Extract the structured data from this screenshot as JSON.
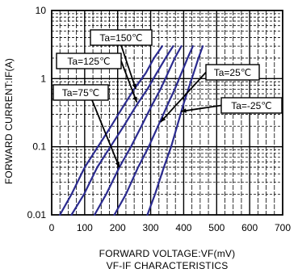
{
  "chart_data": {
    "type": "line",
    "xlabel": "FORWARD VOLTAGE:VF(mV)",
    "subtitle": "VF-IF CHARACTERISTICS",
    "ylabel": "FORWARD CURRENT:IF(A)",
    "x_scale": "linear",
    "y_scale": "log",
    "xlim": [
      0,
      700
    ],
    "ylim": [
      0.01,
      10
    ],
    "x_ticks": [
      "0",
      "100",
      "200",
      "300",
      "400",
      "500",
      "600",
      "700"
    ],
    "y_ticks": [
      "0.01",
      "0.1",
      "1",
      "10"
    ],
    "grid": true,
    "colors": {
      "curve": "#2b2b8f",
      "grid": "#000000"
    },
    "series": [
      {
        "name": "Ta=150℃",
        "x": [
          25,
          60,
          100,
          140,
          180,
          218,
          250,
          285,
          310,
          335
        ],
        "y": [
          0.01,
          0.02,
          0.05,
          0.1,
          0.2,
          0.4,
          0.7,
          1.2,
          2.0,
          3.0
        ]
      },
      {
        "name": "Ta=125℃",
        "x": [
          60,
          98,
          138,
          178,
          218,
          256,
          290,
          318,
          345,
          368
        ],
        "y": [
          0.01,
          0.02,
          0.05,
          0.1,
          0.2,
          0.4,
          0.7,
          1.2,
          2.0,
          3.0
        ]
      },
      {
        "name": "Ta=75℃",
        "x": [
          130,
          165,
          205,
          240,
          272,
          303,
          330,
          352,
          373,
          393
        ],
        "y": [
          0.01,
          0.02,
          0.05,
          0.1,
          0.2,
          0.4,
          0.7,
          1.2,
          2.0,
          3.0
        ]
      },
      {
        "name": "Ta=25℃",
        "x": [
          190,
          225,
          262,
          294,
          322,
          350,
          373,
          393,
          412,
          428
        ],
        "y": [
          0.01,
          0.02,
          0.05,
          0.1,
          0.2,
          0.4,
          0.7,
          1.2,
          2.0,
          3.0
        ]
      },
      {
        "name": "Ta=-25℃",
        "x": [
          290,
          313,
          340,
          362,
          380,
          398,
          414,
          430,
          445,
          458
        ],
        "y": [
          0.01,
          0.02,
          0.05,
          0.1,
          0.2,
          0.4,
          0.7,
          1.2,
          2.0,
          3.0
        ]
      }
    ],
    "annotations": [
      {
        "label": "Ta=150℃",
        "series": 0,
        "arrow_to": [
          255,
          0.7
        ]
      },
      {
        "label": "Ta=125℃",
        "series": 1,
        "arrow_to": [
          258,
          0.45
        ]
      },
      {
        "label": "Ta=75℃",
        "series": 2,
        "arrow_to": [
          205,
          0.05
        ]
      },
      {
        "label": "Ta=25℃",
        "series": 3,
        "arrow_to": [
          330,
          0.23
        ]
      },
      {
        "label": "Ta=-25℃",
        "series": 4,
        "arrow_to": [
          392,
          0.33
        ]
      }
    ]
  }
}
